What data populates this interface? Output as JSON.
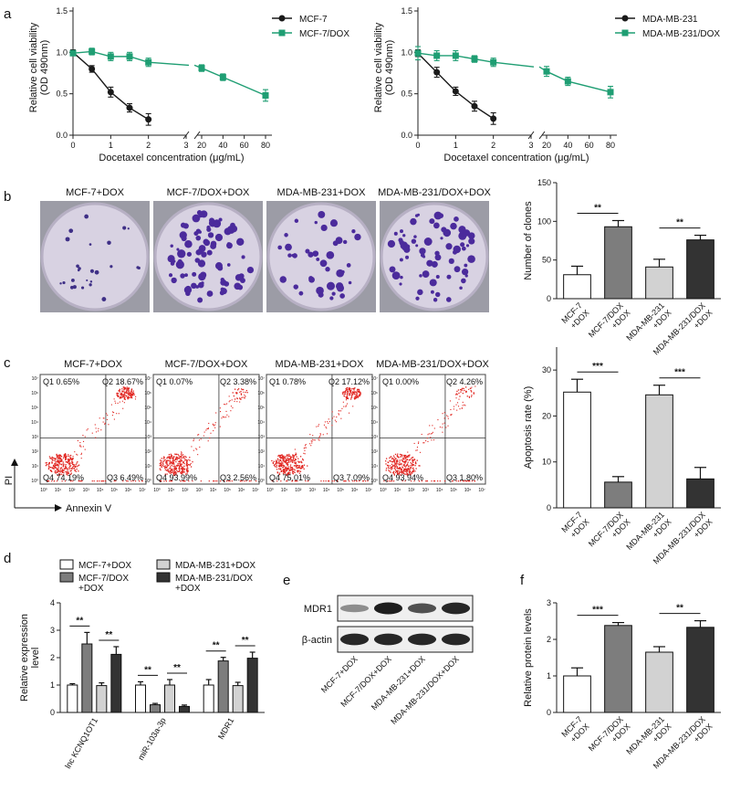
{
  "panel_labels": [
    "a",
    "b",
    "c",
    "d",
    "e",
    "f"
  ],
  "chart_data": [
    {
      "id": "a1",
      "type": "line",
      "ylabel": "Relative cell viability\n(OD 490nm)",
      "xlabel": "Docetaxel concentration (μg/mL)",
      "xticks": [
        "0",
        "1",
        "2",
        "3",
        "20",
        "40",
        "60",
        "80"
      ],
      "yticks": [
        "0.0",
        "0.5",
        "1.0",
        "1.5"
      ],
      "ylim": [
        0,
        1.5
      ],
      "series": [
        {
          "name": "MCF-7",
          "color": "#1a1a1a",
          "marker": "circle",
          "x": [
            0,
            0.5,
            1,
            1.5,
            2
          ],
          "y": [
            1.0,
            0.8,
            0.52,
            0.33,
            0.19
          ],
          "err": [
            0.03,
            0.04,
            0.06,
            0.05,
            0.07
          ]
        },
        {
          "name": "MCF-7/DOX",
          "color": "#1f9e73",
          "marker": "square",
          "x": [
            0,
            0.5,
            1,
            1.5,
            2,
            20,
            40,
            80
          ],
          "y": [
            0.99,
            1.01,
            0.95,
            0.95,
            0.88,
            0.81,
            0.7,
            0.48
          ],
          "err": [
            0.03,
            0.04,
            0.05,
            0.05,
            0.05,
            0.04,
            0.04,
            0.07
          ]
        }
      ]
    },
    {
      "id": "a2",
      "type": "line",
      "ylabel": "Relative cell viability\n(OD 490nm)",
      "xlabel": "Docetaxel concentration (μg/mL)",
      "xticks": [
        "0",
        "1",
        "2",
        "3",
        "20",
        "40",
        "60",
        "80"
      ],
      "yticks": [
        "0.0",
        "0.5",
        "1.0",
        "1.5"
      ],
      "ylim": [
        0,
        1.5
      ],
      "series": [
        {
          "name": "MDA-MB-231",
          "color": "#1a1a1a",
          "marker": "circle",
          "x": [
            0,
            0.5,
            1,
            1.5,
            2
          ],
          "y": [
            0.99,
            0.76,
            0.53,
            0.35,
            0.2
          ],
          "err": [
            0.04,
            0.06,
            0.05,
            0.06,
            0.07
          ]
        },
        {
          "name": "MDA-MB-231/DOX",
          "color": "#1f9e73",
          "marker": "square",
          "x": [
            0,
            0.5,
            1,
            1.5,
            2,
            20,
            40,
            80
          ],
          "y": [
            0.99,
            0.96,
            0.96,
            0.92,
            0.88,
            0.77,
            0.65,
            0.52
          ],
          "err": [
            0.08,
            0.06,
            0.06,
            0.04,
            0.05,
            0.06,
            0.05,
            0.07
          ]
        }
      ]
    },
    {
      "id": "b",
      "type": "bar",
      "ylabel": "Number of clones",
      "categories": [
        "MCF-7\n+DOX",
        "MCF-7/DOX\n+DOX",
        "MDA-MB-231\n+DOX",
        "MDA-MB-231/DOX\n+DOX"
      ],
      "values": [
        31,
        93,
        41,
        76
      ],
      "err": [
        11,
        8,
        10,
        6
      ],
      "colors": [
        "#ffffff",
        "#7d7d7d",
        "#d2d2d2",
        "#333333"
      ],
      "yticks": [
        "0",
        "50",
        "100",
        "150"
      ],
      "ylim": [
        0,
        150
      ],
      "significance": [
        {
          "pair": [
            0,
            1
          ],
          "label": "**"
        },
        {
          "pair": [
            2,
            3
          ],
          "label": "**"
        }
      ]
    },
    {
      "id": "c",
      "type": "bar",
      "ylabel": "Apoptosis rate (%)",
      "categories": [
        "MCF-7\n+DOX",
        "MCF-7/DOX\n+DOX",
        "MDA-MB-231\n+DOX",
        "MDA-MB-231/DOX\n+DOX"
      ],
      "values": [
        25.2,
        5.6,
        24.6,
        6.3
      ],
      "err": [
        2.8,
        1.2,
        2.1,
        2.5
      ],
      "colors": [
        "#ffffff",
        "#7d7d7d",
        "#d2d2d2",
        "#333333"
      ],
      "yticks": [
        "0",
        "10",
        "20",
        "30"
      ],
      "ylim": [
        0,
        35
      ],
      "significance": [
        {
          "pair": [
            0,
            1
          ],
          "label": "***"
        },
        {
          "pair": [
            2,
            3
          ],
          "label": "***"
        }
      ]
    },
    {
      "id": "d",
      "type": "bar",
      "ylabel": "Relative expression\nlevel",
      "groups": [
        "lnc KCNQ1OT1",
        "miR-103a-3p",
        "MDR1"
      ],
      "series": [
        {
          "name": "MCF-7+DOX",
          "color": "#ffffff",
          "values": [
            1.0,
            1.0,
            1.0
          ],
          "err": [
            0.05,
            0.12,
            0.2
          ]
        },
        {
          "name": "MCF-7/DOX\n+DOX",
          "color": "#7d7d7d",
          "values": [
            2.5,
            0.28,
            1.88
          ],
          "err": [
            0.42,
            0.05,
            0.13
          ]
        },
        {
          "name": "MDA-MB-231+DOX",
          "color": "#d2d2d2",
          "values": [
            0.98,
            1.0,
            0.98
          ],
          "err": [
            0.1,
            0.2,
            0.12
          ]
        },
        {
          "name": "MDA-MB-231/DOX\n+DOX",
          "color": "#333333",
          "values": [
            2.12,
            0.22,
            1.98
          ],
          "err": [
            0.28,
            0.05,
            0.22
          ]
        }
      ],
      "yticks": [
        "0",
        "1",
        "2",
        "3",
        "4"
      ],
      "ylim": [
        0,
        4
      ],
      "significance": [
        {
          "group": 0,
          "pair": [
            0,
            1
          ],
          "label": "**"
        },
        {
          "group": 0,
          "pair": [
            2,
            3
          ],
          "label": "**"
        },
        {
          "group": 1,
          "pair": [
            0,
            1
          ],
          "label": "**"
        },
        {
          "group": 1,
          "pair": [
            2,
            3
          ],
          "label": "**"
        },
        {
          "group": 2,
          "pair": [
            0,
            1
          ],
          "label": "**"
        },
        {
          "group": 2,
          "pair": [
            2,
            3
          ],
          "label": "**"
        }
      ]
    },
    {
      "id": "f",
      "type": "bar",
      "ylabel": "Relative protein levels",
      "categories": [
        "MCF-7\n+DOX",
        "MCF-7/DOX\n+DOX",
        "MDA-MB-231\n+DOX",
        "MDA-MB-231/DOX\n+DOX"
      ],
      "values": [
        1.0,
        2.38,
        1.65,
        2.33
      ],
      "err": [
        0.22,
        0.08,
        0.15,
        0.18
      ],
      "colors": [
        "#ffffff",
        "#7d7d7d",
        "#d2d2d2",
        "#333333"
      ],
      "yticks": [
        "0",
        "1",
        "2",
        "3"
      ],
      "ylim": [
        0,
        3
      ],
      "significance": [
        {
          "pair": [
            0,
            1
          ],
          "label": "***"
        },
        {
          "pair": [
            2,
            3
          ],
          "label": "**"
        }
      ]
    }
  ],
  "colony_plates": [
    {
      "title": "MCF-7+DOX",
      "density": 25
    },
    {
      "title": "MCF-7/DOX+DOX",
      "density": 80
    },
    {
      "title": "MDA-MB-231+DOX",
      "density": 40
    },
    {
      "title": "MDA-MB-231/DOX+DOX",
      "density": 70
    }
  ],
  "flow_plots": [
    {
      "title": "MCF-7+DOX",
      "q1": "Q1 0.65%",
      "q2": "Q2 18.67%",
      "q3": "Q3 6.49%",
      "q4": "Q4 74.19%"
    },
    {
      "title": "MCF-7/DOX+DOX",
      "q1": "Q1 0.07%",
      "q2": "Q2 3.38%",
      "q3": "Q3 2.56%",
      "q4": "Q4 93.99%"
    },
    {
      "title": "MDA-MB-231+DOX",
      "q1": "Q1 0.78%",
      "q2": "Q2 17.12%",
      "q3": "Q3 7.09%",
      "q4": "Q4 75.01%"
    },
    {
      "title": "MDA-MB-231/DOX+DOX",
      "q1": "Q1 0.00%",
      "q2": "Q2 4.26%",
      "q3": "Q3 1.80%",
      "q4": "Q4 93.94%"
    }
  ],
  "flow_axes": {
    "y": "PI",
    "x": "Annexin V"
  },
  "flow_ticks": [
    "10⁰",
    "10¹",
    "10²",
    "10³",
    "10⁴",
    "10⁵",
    "10⁶",
    "10⁷"
  ],
  "western_blot": {
    "rows": [
      "MDR1",
      "β-actin"
    ],
    "lanes": [
      "MCF-7+DOX",
      "MCF-7/DOX+DOX",
      "MDA-MB-231+DOX",
      "MDA-MB-231/DOX+DOX"
    ],
    "mdr1_intensity": [
      0.35,
      1.0,
      0.7,
      0.95
    ],
    "actin_intensity": [
      0.95,
      0.95,
      0.95,
      0.95
    ]
  }
}
